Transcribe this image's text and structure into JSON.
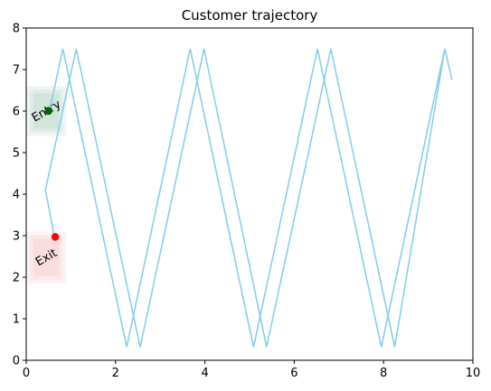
{
  "chart_data": {
    "type": "line",
    "title": "Customer trajectory",
    "xlabel": "",
    "ylabel": "",
    "xlim": [
      0,
      10
    ],
    "ylim": [
      0,
      8
    ],
    "xticks": [
      "0",
      "2",
      "4",
      "6",
      "8",
      "10"
    ],
    "yticks": [
      "0",
      "1",
      "2",
      "3",
      "4",
      "5",
      "6",
      "7",
      "8"
    ],
    "grid": false,
    "line_color": "#87CEEB",
    "series": [
      {
        "x": [
          0.52,
          0.82,
          2.25,
          3.67,
          5.09,
          6.52,
          7.95,
          9.37,
          9.53,
          9.37,
          8.25,
          6.82,
          5.38,
          3.98,
          2.55,
          1.12,
          0.43,
          0.64
        ],
        "y": [
          6.0,
          7.5,
          0.32,
          7.5,
          0.32,
          7.5,
          0.32,
          7.5,
          6.75,
          7.5,
          0.32,
          7.5,
          0.32,
          7.5,
          0.32,
          7.5,
          4.1,
          2.95
        ]
      }
    ],
    "points": [
      {
        "label": "Entry",
        "x": 0.5,
        "y": 6.0,
        "color": "#006400"
      },
      {
        "label": "Exit",
        "x": 0.65,
        "y": 2.97,
        "color": "#ff0000"
      }
    ],
    "zones": [
      {
        "label": "Entry",
        "x": [
          0.0,
          0.9
        ],
        "y": [
          5.4,
          6.6
        ],
        "color": "#2e8b57"
      },
      {
        "label": "Exit",
        "x": [
          0.0,
          0.9
        ],
        "y": [
          1.85,
          3.1
        ],
        "color": "#e06070"
      }
    ]
  }
}
